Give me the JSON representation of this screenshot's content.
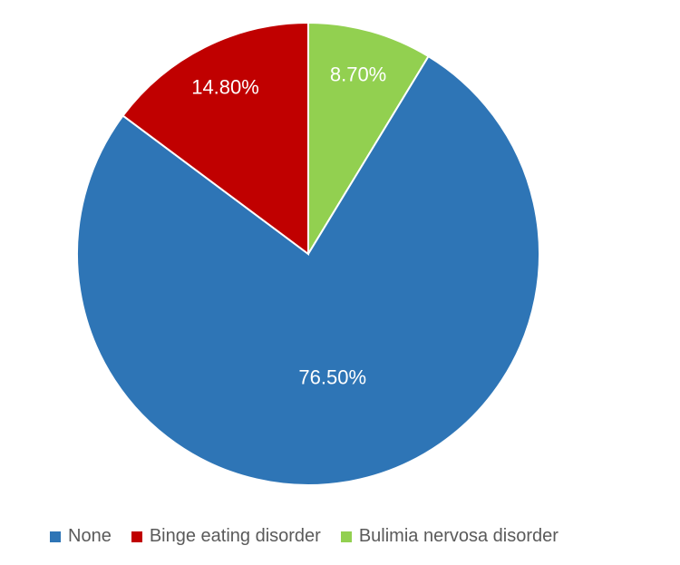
{
  "chart": {
    "type": "pie",
    "start_angle_deg": -90,
    "direction": "clockwise",
    "background_color": "#ffffff",
    "label_fontsize": 22,
    "label_color": "#ffffff",
    "legend": {
      "fontsize": 20,
      "text_color": "#5a5a5a",
      "swatch_size": 12,
      "gap": 22
    },
    "slices": [
      {
        "name": "Bulimia nervosa disorder",
        "value": 8.7,
        "label": "8.70%",
        "color": "#92d050"
      },
      {
        "name": "None",
        "value": 76.5,
        "label": "76.50%",
        "color": "#2e75b6"
      },
      {
        "name": "Binge eating disorder",
        "value": 14.8,
        "label": "14.80%",
        "color": "#c00000"
      }
    ],
    "legend_order": [
      {
        "name": "None",
        "color": "#2e75b6"
      },
      {
        "name": "Binge eating disorder",
        "color": "#c00000"
      },
      {
        "name": "Bulimia nervosa disorder",
        "color": "#92d050"
      }
    ]
  }
}
